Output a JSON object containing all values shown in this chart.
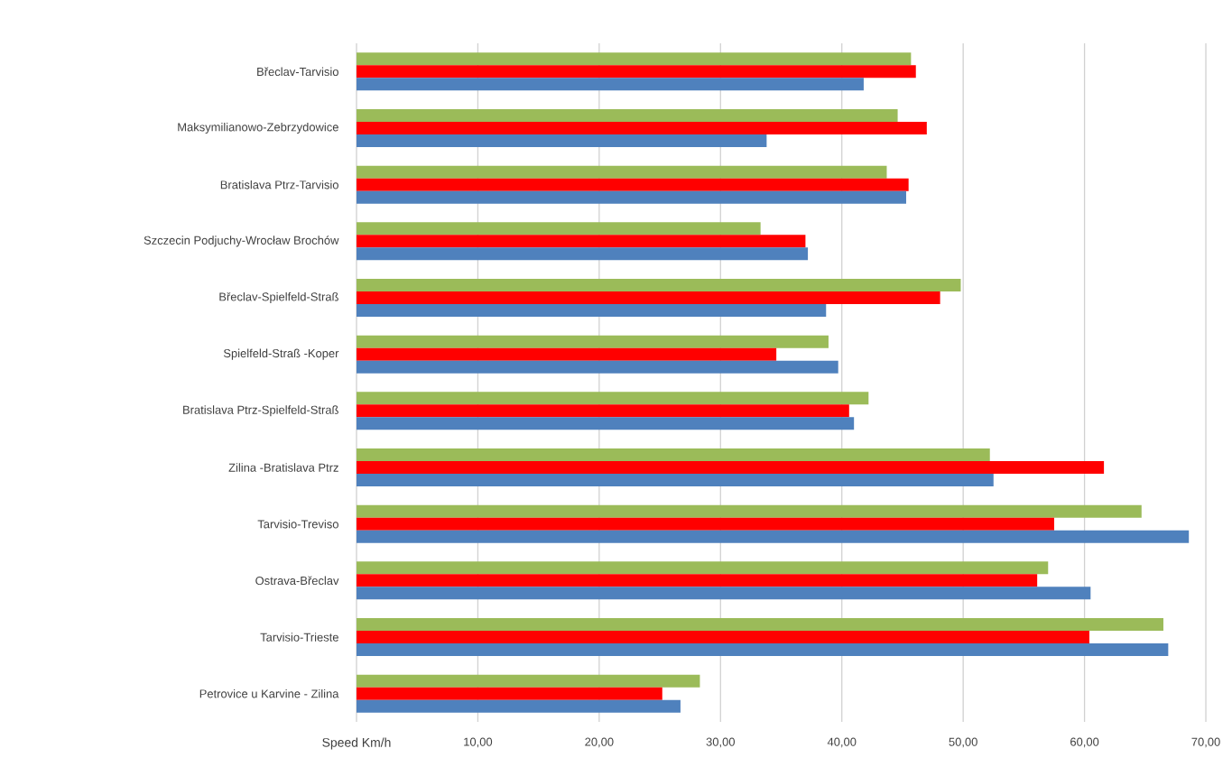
{
  "chart_data": {
    "type": "bar",
    "orientation": "horizontal",
    "xlabel": "Speed Km/h",
    "categories": [
      "Břeclav-Tarvisio",
      "Maksymilianowo-Zebrzydowice",
      "Bratislava Ptrz-Tarvisio",
      "Szczecin Podjuchy-Wrocław Brochów",
      "Břeclav-Spielfeld-Straß",
      "Spielfeld-Straß -Koper",
      "Bratislava Ptrz-Spielfeld-Straß",
      "Zilina -Bratislava Ptrz",
      "Tarvisio-Treviso",
      "Ostrava-Břeclav",
      "Tarvisio-Trieste",
      "Petrovice u Karvine - Zilina"
    ],
    "series": [
      {
        "color": "#9bbb59",
        "values": [
          45.7,
          44.6,
          43.7,
          33.3,
          49.8,
          38.9,
          42.2,
          52.2,
          64.7,
          57.0,
          66.5,
          28.3
        ]
      },
      {
        "color": "#ff0000",
        "values": [
          46.1,
          47.0,
          45.5,
          37.0,
          48.1,
          34.6,
          40.6,
          61.6,
          57.5,
          56.1,
          60.4,
          25.2
        ]
      },
      {
        "color": "#4f81bd",
        "values": [
          41.8,
          33.8,
          45.3,
          37.2,
          38.7,
          39.7,
          41.0,
          52.5,
          68.6,
          60.5,
          66.9,
          26.7
        ]
      }
    ],
    "xlim": [
      0,
      70
    ],
    "xticks": [
      {
        "value": 0,
        "label": null
      },
      {
        "value": 10,
        "label": "10,00"
      },
      {
        "value": 20,
        "label": "20,00"
      },
      {
        "value": 30,
        "label": "30,00"
      },
      {
        "value": 40,
        "label": "40,00"
      },
      {
        "value": 50,
        "label": "50,00"
      },
      {
        "value": 60,
        "label": "60,00"
      },
      {
        "value": 70,
        "label": "70,00"
      }
    ],
    "grid": "x"
  }
}
